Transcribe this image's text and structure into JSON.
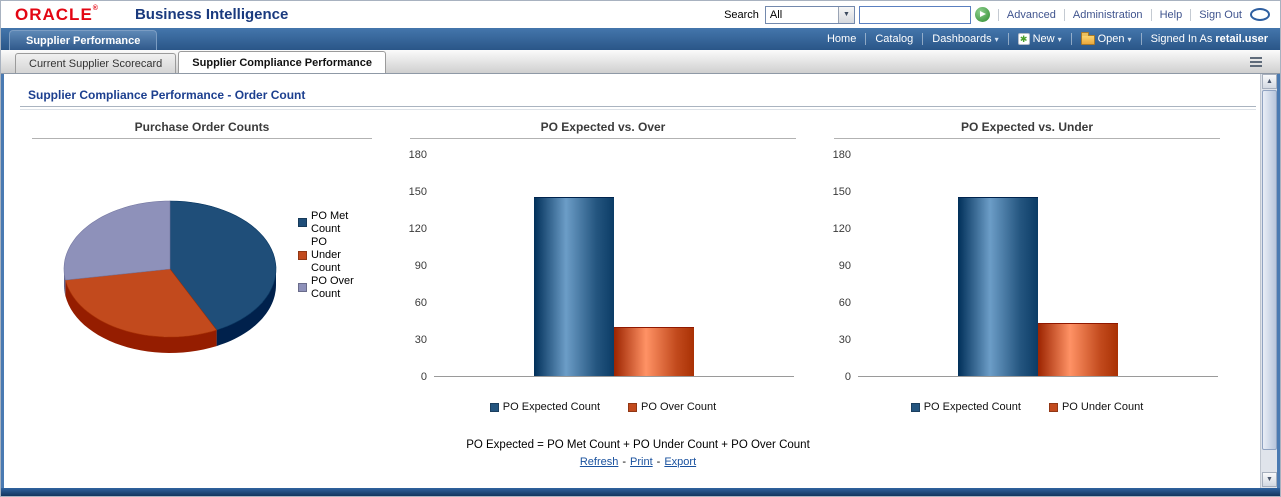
{
  "header": {
    "brand": "ORACLE",
    "registered_mark": "®",
    "product": "Business Intelligence",
    "search": {
      "label": "Search",
      "scope": "All",
      "value": ""
    },
    "links": [
      "Advanced",
      "Administration",
      "Help",
      "Sign Out"
    ]
  },
  "navbar": {
    "active_tab": "Supplier Performance",
    "home": "Home",
    "catalog": "Catalog",
    "dashboards": "Dashboards",
    "new": "New",
    "open": "Open",
    "signed_in_label": "Signed In As",
    "user": "retail.user"
  },
  "subtabs": {
    "scorecard": "Current Supplier Scorecard",
    "compliance": "Supplier Compliance Performance"
  },
  "page": {
    "title": "Supplier Compliance Performance - Order Count",
    "footnote": "PO Expected = PO Met Count + PO Under Count + PO Over Count",
    "links": [
      "Refresh",
      "Print",
      "Export"
    ],
    "link_separator": "-"
  },
  "icons": {
    "dropdown": "▼",
    "chevron": "▾",
    "scroll_up": "▲",
    "scroll_down": "▼",
    "new_star": "✱"
  },
  "colors": {
    "expected_blue": "#24557f",
    "status_orange": "#c24a1d",
    "over_purple": "#8e91ba",
    "link_blue": "#19519e"
  },
  "chart_data": [
    {
      "type": "pie",
      "title": "Purchase Order Counts",
      "labels": [
        "PO Met Count",
        "PO Under Count",
        "PO Over Count"
      ],
      "values": [
        62,
        43,
        40
      ],
      "colors": [
        "#1f4e79",
        "#c24a1d",
        "#8e91ba"
      ],
      "legend_position": "right"
    },
    {
      "type": "bar",
      "title": "PO Expected vs. Over",
      "categories": [
        "PO Expected Count",
        "PO Over Count"
      ],
      "values": [
        145,
        40
      ],
      "colors": [
        "#24557f",
        "#c24a1d"
      ],
      "xlabel": "",
      "ylabel": "",
      "ylim": [
        0,
        180
      ],
      "yticks": [
        0,
        30,
        60,
        90,
        120,
        150,
        180
      ],
      "grid": false,
      "legend_position": "bottom"
    },
    {
      "type": "bar",
      "title": "PO Expected vs. Under",
      "categories": [
        "PO Expected Count",
        "PO Under Count"
      ],
      "values": [
        145,
        43
      ],
      "colors": [
        "#24557f",
        "#c24a1d"
      ],
      "xlabel": "",
      "ylabel": "",
      "ylim": [
        0,
        180
      ],
      "yticks": [
        0,
        30,
        60,
        90,
        120,
        150,
        180
      ],
      "grid": false,
      "legend_position": "bottom"
    }
  ]
}
